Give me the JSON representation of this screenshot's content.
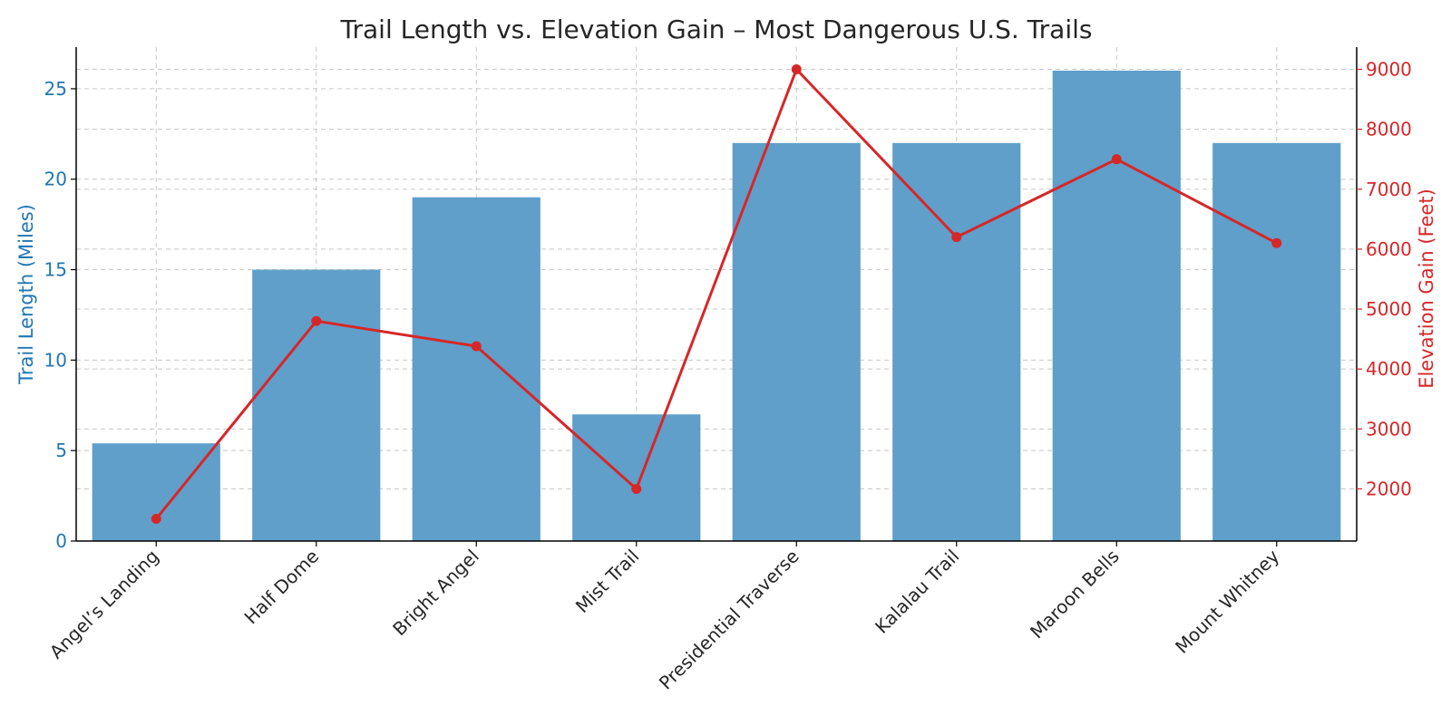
{
  "chart_data": {
    "type": "bar",
    "title": "Trail Length vs. Elevation Gain – Most Dangerous U.S. Trails",
    "categories": [
      "Angel’s Landing",
      "Half Dome",
      "Bright Angel",
      "Mist Trail",
      "Presidential Traverse",
      "Kalalau Trail",
      "Maroon Bells",
      "Mount Whitney"
    ],
    "series": [
      {
        "name": "Trail Length (Miles)",
        "type": "bar",
        "axis": "left",
        "color": "#609fca",
        "values": [
          5.4,
          15,
          19,
          7,
          22,
          22,
          26,
          22
        ]
      },
      {
        "name": "Elevation Gain (Feet)",
        "type": "line",
        "axis": "right",
        "color": "#d62728",
        "values": [
          1500,
          4800,
          4380,
          2000,
          9000,
          6200,
          7500,
          6100
        ]
      }
    ],
    "ylabel_left": "Trail Length (Miles)",
    "ylabel_right": "Elevation Gain (Feet)",
    "ylim_left": [
      0,
      27.3
    ],
    "ylim_right": [
      1130,
      9370
    ],
    "yticks_left": [
      0,
      5,
      10,
      15,
      20,
      25
    ],
    "yticks_right": [
      2000,
      3000,
      4000,
      5000,
      6000,
      7000,
      8000,
      9000
    ],
    "left_axis_color": "#1f77b4",
    "right_axis_color": "#d62728",
    "grid": true,
    "legend": "none"
  }
}
